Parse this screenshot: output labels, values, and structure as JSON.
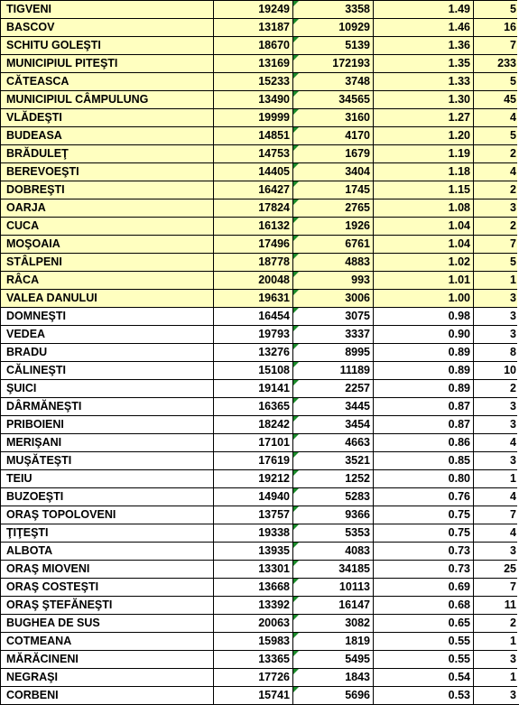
{
  "rows": [
    {
      "name": "TIGVENI",
      "v1": "19249",
      "v2": "3358",
      "ratio": "1.49",
      "count": "5",
      "highlight": true
    },
    {
      "name": "BASCOV",
      "v1": "13187",
      "v2": "10929",
      "ratio": "1.46",
      "count": "16",
      "highlight": true
    },
    {
      "name": "SCHITU GOLEŞTI",
      "v1": "18670",
      "v2": "5139",
      "ratio": "1.36",
      "count": "7",
      "highlight": true
    },
    {
      "name": "MUNICIPIUL PITEŞTI",
      "v1": "13169",
      "v2": "172193",
      "ratio": "1.35",
      "count": "233",
      "highlight": true
    },
    {
      "name": "CĂTEASCA",
      "v1": "15233",
      "v2": "3748",
      "ratio": "1.33",
      "count": "5",
      "highlight": true
    },
    {
      "name": "MUNICIPIUL CÂMPULUNG",
      "v1": "13490",
      "v2": "34565",
      "ratio": "1.30",
      "count": "45",
      "highlight": true
    },
    {
      "name": "VLĂDEŞTI",
      "v1": "19999",
      "v2": "3160",
      "ratio": "1.27",
      "count": "4",
      "highlight": true
    },
    {
      "name": "BUDEASA",
      "v1": "14851",
      "v2": "4170",
      "ratio": "1.20",
      "count": "5",
      "highlight": true
    },
    {
      "name": "BRĂDULEŢ",
      "v1": "14753",
      "v2": "1679",
      "ratio": "1.19",
      "count": "2",
      "highlight": true
    },
    {
      "name": "BEREVOEŞTI",
      "v1": "14405",
      "v2": "3404",
      "ratio": "1.18",
      "count": "4",
      "highlight": true
    },
    {
      "name": "DOBREŞTI",
      "v1": "16427",
      "v2": "1745",
      "ratio": "1.15",
      "count": "2",
      "highlight": true
    },
    {
      "name": "OARJA",
      "v1": "17824",
      "v2": "2765",
      "ratio": "1.08",
      "count": "3",
      "highlight": true
    },
    {
      "name": "CUCA",
      "v1": "16132",
      "v2": "1926",
      "ratio": "1.04",
      "count": "2",
      "highlight": true
    },
    {
      "name": "MOŞOAIA",
      "v1": "17496",
      "v2": "6761",
      "ratio": "1.04",
      "count": "7",
      "highlight": true
    },
    {
      "name": "STÂLPENI",
      "v1": "18778",
      "v2": "4883",
      "ratio": "1.02",
      "count": "5",
      "highlight": true
    },
    {
      "name": "RÂCA",
      "v1": "20048",
      "v2": "993",
      "ratio": "1.01",
      "count": "1",
      "highlight": true
    },
    {
      "name": "VALEA DANULUI",
      "v1": "19631",
      "v2": "3006",
      "ratio": "1.00",
      "count": "3",
      "highlight": true
    },
    {
      "name": "DOMNEŞTI",
      "v1": "16454",
      "v2": "3075",
      "ratio": "0.98",
      "count": "3",
      "highlight": false
    },
    {
      "name": "VEDEA",
      "v1": "19793",
      "v2": "3337",
      "ratio": "0.90",
      "count": "3",
      "highlight": false
    },
    {
      "name": "BRADU",
      "v1": "13276",
      "v2": "8995",
      "ratio": "0.89",
      "count": "8",
      "highlight": false
    },
    {
      "name": "CĂLINEŞTI",
      "v1": "15108",
      "v2": "11189",
      "ratio": "0.89",
      "count": "10",
      "highlight": false
    },
    {
      "name": "ŞUICI",
      "v1": "19141",
      "v2": "2257",
      "ratio": "0.89",
      "count": "2",
      "highlight": false
    },
    {
      "name": "DÂRMĂNEŞTI",
      "v1": "16365",
      "v2": "3445",
      "ratio": "0.87",
      "count": "3",
      "highlight": false
    },
    {
      "name": "PRIBOIENI",
      "v1": "18242",
      "v2": "3454",
      "ratio": "0.87",
      "count": "3",
      "highlight": false
    },
    {
      "name": "MERIŞANI",
      "v1": "17101",
      "v2": "4663",
      "ratio": "0.86",
      "count": "4",
      "highlight": false
    },
    {
      "name": "MUŞĂTEŞTI",
      "v1": "17619",
      "v2": "3521",
      "ratio": "0.85",
      "count": "3",
      "highlight": false
    },
    {
      "name": "TEIU",
      "v1": "19212",
      "v2": "1252",
      "ratio": "0.80",
      "count": "1",
      "highlight": false
    },
    {
      "name": "BUZOEŞTI",
      "v1": "14940",
      "v2": "5283",
      "ratio": "0.76",
      "count": "4",
      "highlight": false
    },
    {
      "name": "ORAŞ TOPOLOVENI",
      "v1": "13757",
      "v2": "9366",
      "ratio": "0.75",
      "count": "7",
      "highlight": false
    },
    {
      "name": "ŢIŢEŞTI",
      "v1": "19338",
      "v2": "5353",
      "ratio": "0.75",
      "count": "4",
      "highlight": false
    },
    {
      "name": "ALBOTA",
      "v1": "13935",
      "v2": "4083",
      "ratio": "0.73",
      "count": "3",
      "highlight": false
    },
    {
      "name": "ORAŞ MIOVENI",
      "v1": "13301",
      "v2": "34185",
      "ratio": "0.73",
      "count": "25",
      "highlight": false
    },
    {
      "name": "ORAŞ COSTEŞTI",
      "v1": "13668",
      "v2": "10113",
      "ratio": "0.69",
      "count": "7",
      "highlight": false
    },
    {
      "name": "ORAŞ ŞTEFĂNEŞTI",
      "v1": "13392",
      "v2": "16147",
      "ratio": "0.68",
      "count": "11",
      "highlight": false
    },
    {
      "name": "BUGHEA DE SUS",
      "v1": "20063",
      "v2": "3082",
      "ratio": "0.65",
      "count": "2",
      "highlight": false
    },
    {
      "name": "COTMEANA",
      "v1": "15983",
      "v2": "1819",
      "ratio": "0.55",
      "count": "1",
      "highlight": false
    },
    {
      "name": "MĂRĂCINENI",
      "v1": "13365",
      "v2": "5495",
      "ratio": "0.55",
      "count": "3",
      "highlight": false
    },
    {
      "name": "NEGRAŞI",
      "v1": "17726",
      "v2": "1843",
      "ratio": "0.54",
      "count": "1",
      "highlight": false
    },
    {
      "name": "CORBENI",
      "v1": "15741",
      "v2": "5696",
      "ratio": "0.53",
      "count": "3",
      "highlight": false
    }
  ],
  "colors": {
    "highlight_fill": "#ffffc0",
    "grid_line": "#000000",
    "indicator_triangle": "#1a8a2a"
  }
}
